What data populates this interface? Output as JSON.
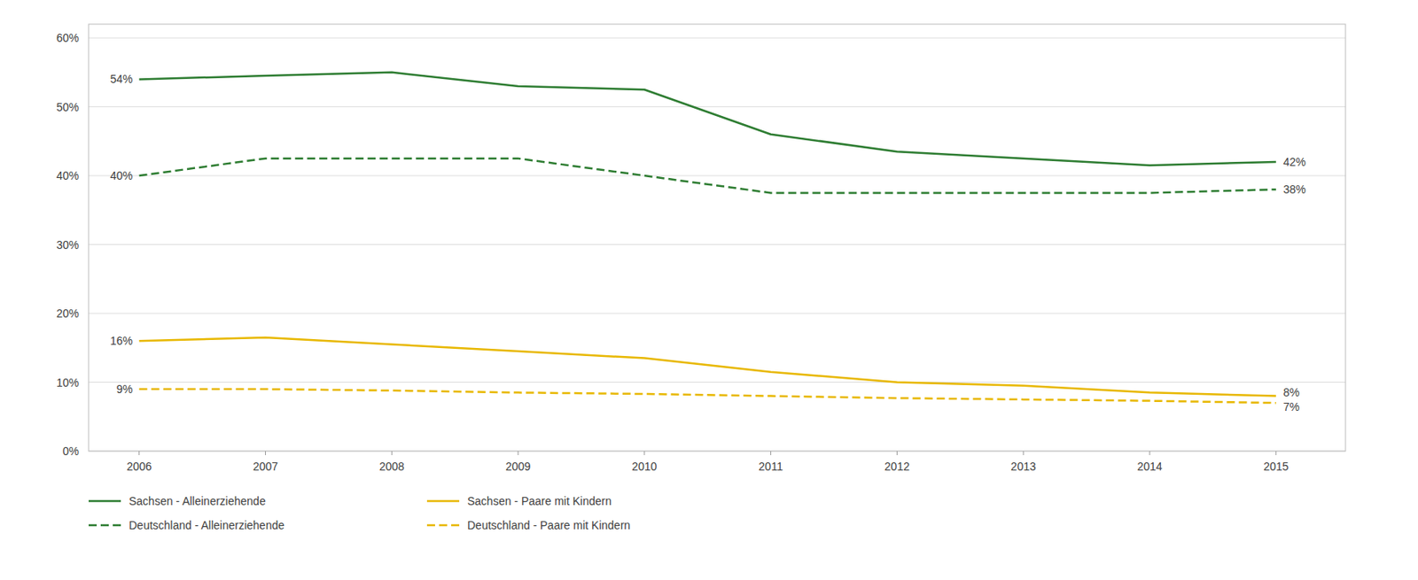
{
  "chart_data": {
    "type": "line",
    "x": [
      2006,
      2007,
      2008,
      2009,
      2010,
      2011,
      2012,
      2013,
      2014,
      2015
    ],
    "series": [
      {
        "name": "Sachsen - Alleinerziehende",
        "color": "#2e7d32",
        "line_style": "solid",
        "values": [
          0.54,
          0.545,
          0.55,
          0.53,
          0.525,
          0.46,
          0.435,
          0.425,
          0.415,
          0.42
        ]
      },
      {
        "name": "Deutschland - Alleinerziehende",
        "color": "#2e7d32",
        "line_style": "dashed",
        "values": [
          0.4,
          0.425,
          0.425,
          0.425,
          0.4,
          0.375,
          0.375,
          0.375,
          0.375,
          0.38
        ]
      },
      {
        "name": "Sachsen - Paare mit Kindern",
        "color": "#e8b800",
        "line_style": "solid",
        "values": [
          0.16,
          0.165,
          0.155,
          0.145,
          0.135,
          0.115,
          0.1,
          0.095,
          0.085,
          0.08
        ]
      },
      {
        "name": "Deutschland - Paare mit Kindern",
        "color": "#e8b800",
        "line_style": "dashed",
        "values": [
          0.09,
          0.09,
          0.088,
          0.085,
          0.083,
          0.08,
          0.077,
          0.075,
          0.073,
          0.07
        ]
      }
    ],
    "xlim": [
      2005.6,
      2015.55
    ],
    "xticks": [
      2006,
      2007,
      2008,
      2009,
      2010,
      2011,
      2012,
      2013,
      2014,
      2015
    ],
    "ylim": [
      0.0,
      0.62
    ],
    "yticks": [
      {
        "value": 0.0,
        "label": "0%"
      },
      {
        "value": 0.1,
        "label": "10%"
      },
      {
        "value": 0.2,
        "label": "20%"
      },
      {
        "value": 0.3,
        "label": "30%"
      },
      {
        "value": 0.4,
        "label": "40%"
      },
      {
        "value": 0.5,
        "label": "50%"
      },
      {
        "value": 0.6,
        "label": "60%"
      }
    ],
    "annotations": [
      {
        "text": "54%",
        "x": 2006,
        "y": 0.54
      },
      {
        "text": "40%",
        "x": 2006,
        "y": 0.4
      },
      {
        "text": "16%",
        "x": 2006,
        "y": 0.16
      },
      {
        "text": "9%",
        "x": 2006,
        "y": 0.09
      },
      {
        "text": "42%",
        "x": 2015,
        "y": 0.42
      },
      {
        "text": "38%",
        "x": 2015,
        "y": 0.38
      },
      {
        "text": "8%",
        "x": 2015,
        "y": 0.08
      },
      {
        "text": "7%",
        "x": 2015,
        "y": 0.07
      }
    ],
    "grid": true,
    "legend": "bottom"
  }
}
